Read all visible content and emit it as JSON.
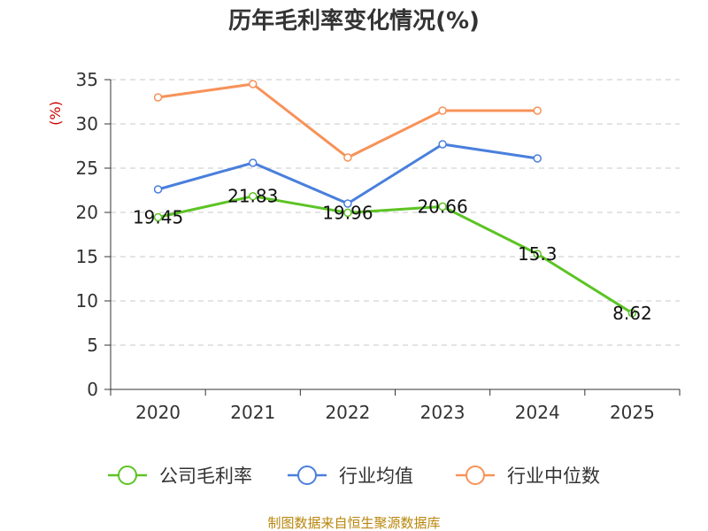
{
  "chart_data": {
    "type": "line",
    "title": "历年毛利率变化情况(%)",
    "ylabel": "(%)",
    "xlabel": "",
    "categories": [
      "2020",
      "2021",
      "2022",
      "2023",
      "2024",
      "2025"
    ],
    "ylim": [
      0,
      35
    ],
    "yticks": [
      0,
      5,
      10,
      15,
      20,
      25,
      30,
      35
    ],
    "grid": true,
    "legend_position": "bottom",
    "series": [
      {
        "name": "公司毛利率",
        "color": "#5cc424",
        "values": [
          19.45,
          21.83,
          19.96,
          20.66,
          15.3,
          8.62
        ],
        "data_labels": [
          "19.45",
          "21.83",
          "19.96",
          "20.66",
          "15.3",
          "8.62"
        ]
      },
      {
        "name": "行业均值",
        "color": "#4a7fdc",
        "values": [
          22.6,
          25.6,
          21.0,
          27.7,
          26.1,
          null
        ]
      },
      {
        "name": "行业中位数",
        "color": "#f79259",
        "values": [
          33.0,
          34.5,
          26.2,
          31.5,
          31.5,
          null
        ]
      }
    ]
  },
  "source": "制图数据来自恒生聚源数据库"
}
